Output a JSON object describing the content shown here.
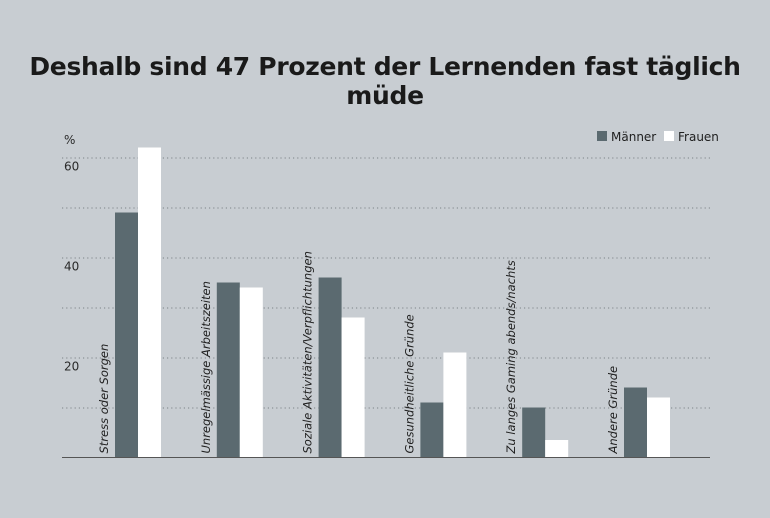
{
  "chart_data": {
    "type": "bar",
    "title": "Deshalb sind 47 Prozent der Lernenden fast täglich müde",
    "ylabel": "%",
    "ylim": [
      0,
      60
    ],
    "yticks": [
      20,
      40,
      60
    ],
    "grid": true,
    "legend_position": "top-right",
    "categories": [
      "Stress oder Sorgen",
      "Unregelmässige Arbeitszeiten",
      "Soziale Aktivitäten/Verpflichtungen",
      "Gesundheitliche Gründe",
      "Zu langes Gaming abends/nachts",
      "Andere Gründe"
    ],
    "series": [
      {
        "name": "Männer",
        "color": "#5b6a70",
        "values": [
          49,
          35,
          36,
          11,
          10,
          14
        ]
      },
      {
        "name": "Frauen",
        "color": "#ffffff",
        "values": [
          62,
          34,
          28,
          21,
          3.5,
          12
        ]
      }
    ]
  }
}
